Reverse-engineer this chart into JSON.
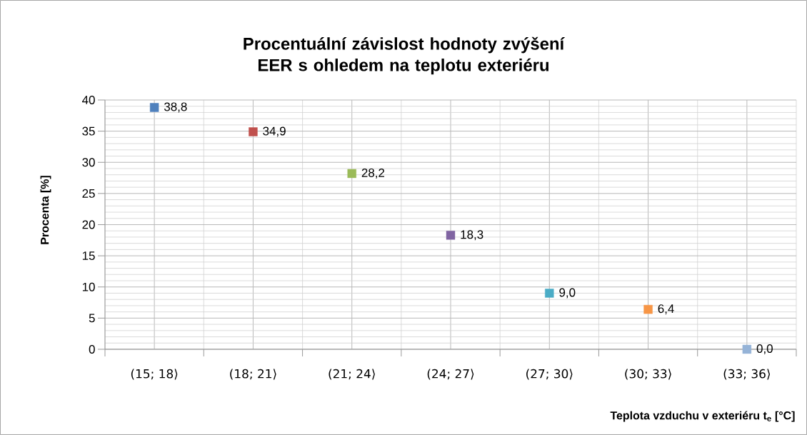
{
  "chart_data": {
    "type": "scatter",
    "title": "Procentuální závislost hodnoty zvýšení EER s ohledem na teplotu exteriéru",
    "xlabel": "Teplota vzduchu v exteriéru t$_{e}$ [°C]",
    "ylabel": "Procenta [%]",
    "categories": [
      "(15; 18⟩",
      "(18; 21⟩",
      "(21; 24⟩",
      "(24; 27⟩",
      "(27; 30⟩",
      "(30; 33⟩",
      "(33; 36⟩"
    ],
    "values": [
      38.8,
      34.9,
      28.2,
      18.3,
      9.0,
      6.4,
      0.0
    ],
    "value_labels": [
      "38,8",
      "34,9",
      "28,2",
      "18,3",
      "9,0",
      "6,4",
      "0,0"
    ],
    "colors": [
      "#4f81bd",
      "#c0504d",
      "#9bbb59",
      "#8064a2",
      "#4bacc6",
      "#f79646",
      "#95b3d7"
    ],
    "ylim": [
      0,
      40
    ],
    "yticks": [
      0,
      5,
      10,
      15,
      20,
      25,
      30,
      35,
      40
    ],
    "grid": true,
    "marker": "square"
  }
}
